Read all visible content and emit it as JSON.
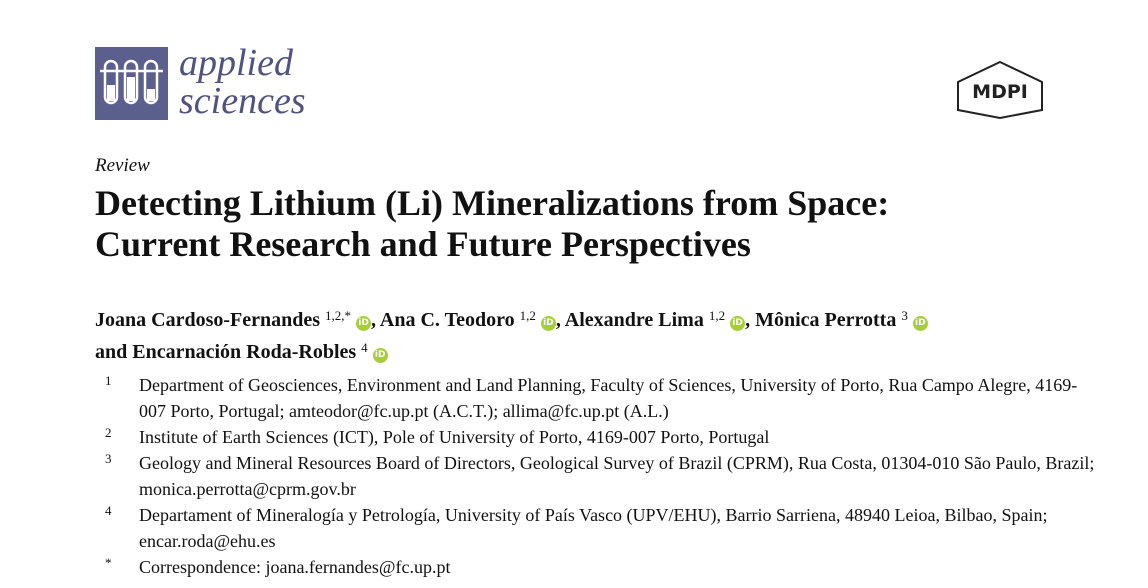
{
  "header": {
    "journal_line1": "applied",
    "journal_line2": "sciences",
    "publisher_logo_text": "MDPI"
  },
  "article": {
    "type": "Review",
    "title_line1": "Detecting Lithium (Li) Mineralizations from Space:",
    "title_line2": "Current Research and Future Perspectives"
  },
  "authors": [
    {
      "name": "Joana Cardoso-Fernandes",
      "sup": "1,2,*"
    },
    {
      "name": "Ana C. Teodoro",
      "sup": "1,2"
    },
    {
      "name": "Alexandre Lima",
      "sup": "1,2"
    },
    {
      "name": "Mônica Perrotta",
      "sup": "3"
    },
    {
      "name": "Encarnación Roda-Robles",
      "sup": "4"
    }
  ],
  "author_joiner": "and",
  "orcid_glyph": "iD",
  "affiliations": [
    {
      "num": "1",
      "text": "Department of Geosciences, Environment and Land Planning, Faculty of Sciences, University of Porto, Rua Campo Alegre, 4169-007 Porto, Portugal; amteodor@fc.up.pt (A.C.T.); allima@fc.up.pt (A.L.)"
    },
    {
      "num": "2",
      "text": "Institute of Earth Sciences (ICT), Pole of University of Porto, 4169-007 Porto, Portugal"
    },
    {
      "num": "3",
      "text": "Geology and Mineral Resources Board of Directors, Geological Survey of Brazil (CPRM), Rua Costa, 01304-010 São Paulo, Brazil; monica.perrotta@cprm.gov.br"
    },
    {
      "num": "4",
      "text": "Departament of Mineralogía y Petrología, University of País Vasco (UPV/EHU), Barrio Sarriena, 48940 Leioa, Bilbao, Spain; encar.roda@ehu.es"
    },
    {
      "num": "*",
      "text": "Correspondence:  joana.fernandes@fc.up.pt"
    }
  ],
  "colors": {
    "journal": "#5a5f8e",
    "orcid": "#a6ce39"
  }
}
